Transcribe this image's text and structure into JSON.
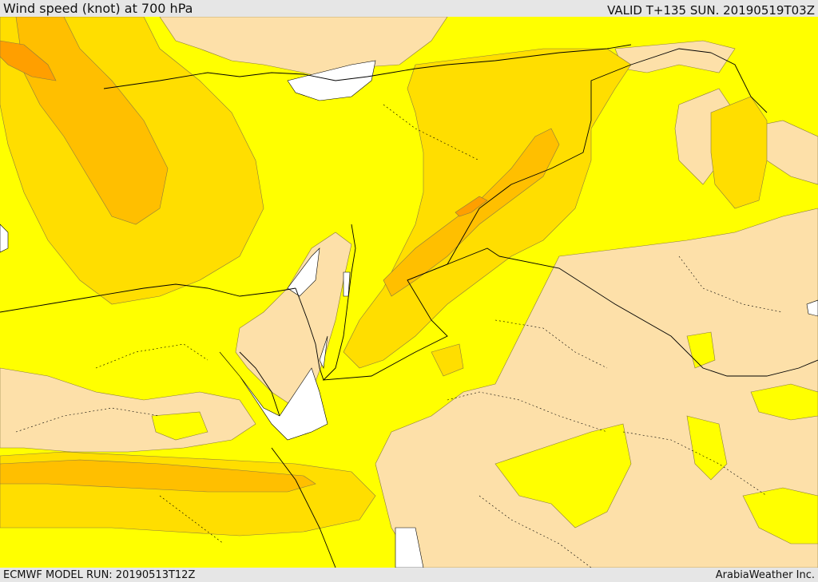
{
  "header": {
    "title": "Wind speed (knot) at 700 hPa",
    "valid": "VALID T+135 SUN. 20190519T03Z"
  },
  "footer": {
    "model_run": "ECMWF MODEL RUN: 20190513T12Z",
    "credit": "ArabiaWeather Inc."
  },
  "colors": {
    "band_low": "#fde0a9",
    "band_mid": "#ffff00",
    "band_high": "#ffde00",
    "band_higher": "#ffbf00",
    "band_highest": "#ff9f00",
    "water": "#ffffff",
    "border": "#000000"
  }
}
